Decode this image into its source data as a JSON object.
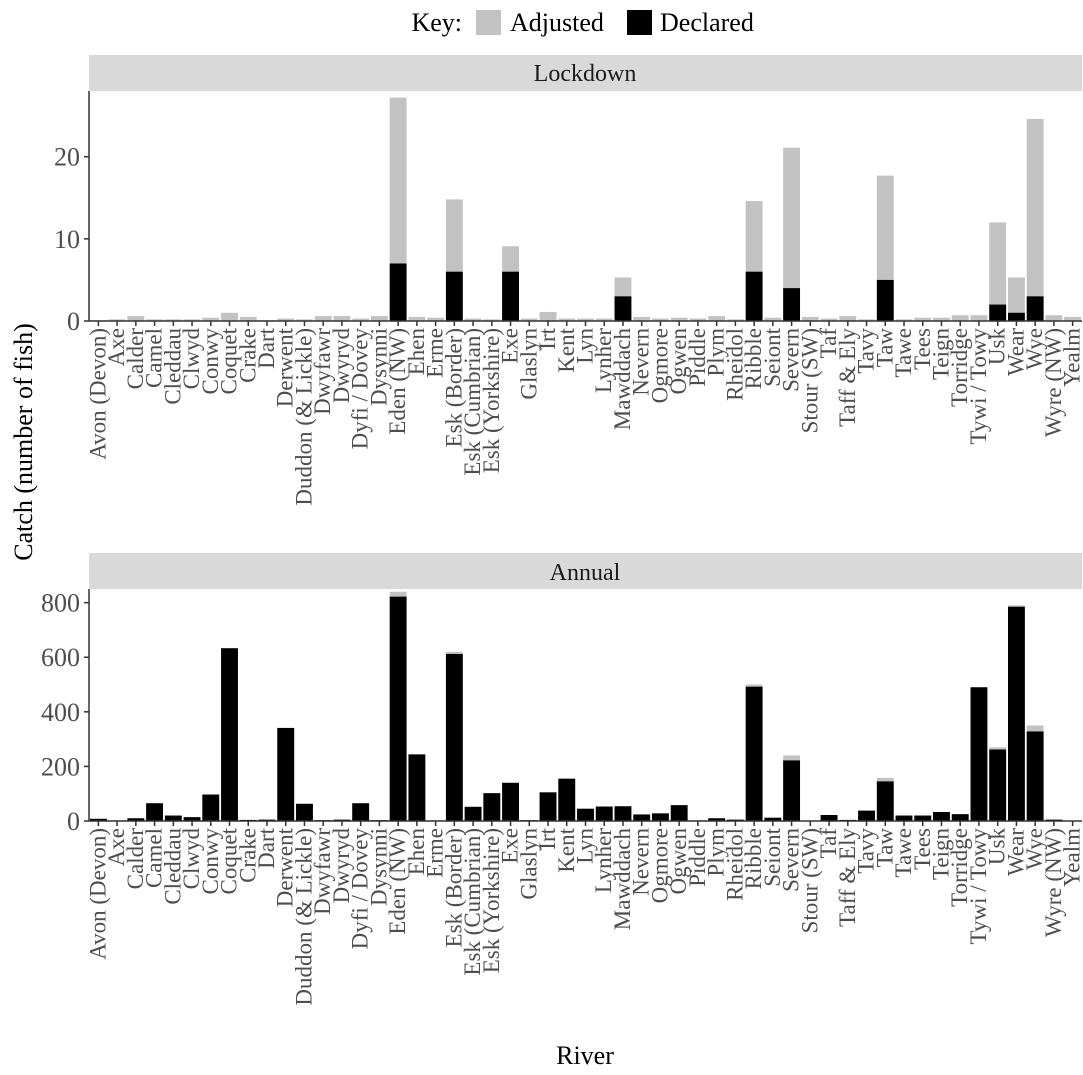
{
  "legend": {
    "title": "Key:",
    "items": [
      {
        "label": "Adjusted",
        "color": "#c2c2c2"
      },
      {
        "label": "Declared",
        "color": "#000000"
      }
    ]
  },
  "colors": {
    "adjusted": "#c2c2c2",
    "declared": "#000000",
    "strip": "#d9d9d9",
    "axis": "#333333"
  },
  "chart_data": {
    "type": "bar",
    "stacked": "overlay",
    "ylabel": "Catch (number of fish)",
    "xlabel": "River",
    "grid": false,
    "legend_position": "top",
    "categories": [
      "Avon (Devon)",
      "Axe",
      "Calder",
      "Camel",
      "Cleddau",
      "Clwyd",
      "Conwy",
      "Coquet",
      "Crake",
      "Dart",
      "Derwent",
      "Duddon (& Lickle)",
      "Dwyfawr",
      "Dwyryd",
      "Dyfi / Dovey",
      "Dysynni",
      "Eden (NW)",
      "Ehen",
      "Erme",
      "Esk (Border)",
      "Esk (Cumbrian)",
      "Esk (Yorkshire)",
      "Exe",
      "Glaslyn",
      "Irt",
      "Kent",
      "Lyn",
      "Lynher",
      "Mawddach",
      "Nevern",
      "Ogmore",
      "Ogwen",
      "Piddle",
      "Plym",
      "Rheidol",
      "Ribble",
      "Seiont",
      "Severn",
      "Stour (SW)",
      "Taf",
      "Taff & Ely",
      "Tavy",
      "Taw",
      "Tawe",
      "Tees",
      "Teign",
      "Torridge",
      "Tywi / Towy",
      "Usk",
      "Wear",
      "Wye",
      "Wyre (NW)",
      "Yealm"
    ],
    "panels": [
      {
        "title": "Lockdown",
        "ylim": [
          0,
          28
        ],
        "yticks": [
          0,
          10,
          20
        ],
        "series": [
          {
            "name": "Adjusted",
            "values": [
              0.1,
              0.2,
              0.6,
              0.2,
              0.2,
              0.2,
              0.4,
              1.0,
              0.5,
              0.1,
              0.3,
              0.2,
              0.6,
              0.6,
              0.3,
              0.6,
              27.2,
              0.5,
              0.4,
              14.8,
              0.3,
              0.2,
              9.1,
              0.3,
              1.1,
              0.3,
              0.3,
              0.3,
              5.3,
              0.5,
              0.3,
              0.4,
              0.3,
              0.6,
              0.2,
              14.6,
              0.4,
              21.1,
              0.5,
              0.3,
              0.6,
              0.2,
              17.7,
              0.2,
              0.4,
              0.4,
              0.7,
              0.7,
              12.0,
              5.3,
              24.6,
              0.7,
              0.5
            ]
          },
          {
            "name": "Declared",
            "values": [
              0,
              0,
              0,
              0,
              0,
              0,
              0,
              0,
              0,
              0,
              0,
              0,
              0,
              0,
              0,
              0,
              7,
              0,
              0,
              6,
              0,
              0,
              6,
              0,
              0,
              0,
              0,
              0,
              3,
              0,
              0,
              0,
              0,
              0,
              0,
              6,
              0,
              4,
              0,
              0,
              0,
              0,
              5,
              0,
              0,
              0,
              0,
              0,
              2,
              1,
              3,
              0,
              0
            ]
          }
        ]
      },
      {
        "title": "Annual",
        "ylim": [
          0,
          850
        ],
        "yticks": [
          0,
          200,
          400,
          600,
          800
        ],
        "series": [
          {
            "name": "Adjusted",
            "values": [
              8,
              2,
              10,
              65,
              20,
              14,
              97,
              633,
              4,
              5,
              341,
              63,
              3,
              5,
              65,
              3,
              840,
              244,
              2,
              620,
              52,
              102,
              140,
              3,
              105,
              155,
              45,
              53,
              54,
              24,
              28,
              58,
              2,
              10,
              5,
              500,
              12,
              240,
              1,
              22,
              4,
              38,
              158,
              20,
              20,
              33,
              25,
              490,
              270,
              790,
              350,
              5,
              1
            ]
          },
          {
            "name": "Declared",
            "values": [
              8,
              2,
              10,
              65,
              20,
              14,
              97,
              633,
              4,
              5,
              341,
              63,
              3,
              5,
              65,
              3,
              822,
              244,
              2,
              612,
              52,
              102,
              140,
              3,
              105,
              155,
              45,
              53,
              54,
              24,
              28,
              58,
              2,
              10,
              5,
              492,
              12,
              222,
              1,
              22,
              4,
              38,
              145,
              20,
              20,
              33,
              25,
              490,
              262,
              785,
              328,
              5,
              1
            ]
          }
        ]
      }
    ]
  }
}
